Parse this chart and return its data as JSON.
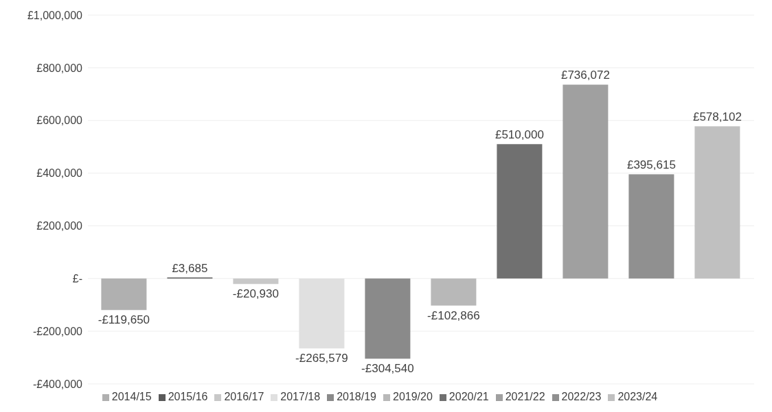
{
  "chart_data": {
    "type": "bar",
    "categories": [
      null
    ],
    "series": [
      {
        "name": "2014/15",
        "color": "#b0b0b0",
        "values": [
          -119650
        ],
        "value_labels": [
          "-£119,650"
        ]
      },
      {
        "name": "2015/16",
        "color": "#5a5a5a",
        "values": [
          3685
        ],
        "value_labels": [
          "£3,685"
        ]
      },
      {
        "name": "2016/17",
        "color": "#c8c8c8",
        "values": [
          -20930
        ],
        "value_labels": [
          "-£20,930"
        ]
      },
      {
        "name": "2017/18",
        "color": "#e0e0e0",
        "values": [
          -265579
        ],
        "value_labels": [
          "-£265,579"
        ]
      },
      {
        "name": "2018/19",
        "color": "#8a8a8a",
        "values": [
          -304540
        ],
        "value_labels": [
          "-£304,540"
        ]
      },
      {
        "name": "2019/20",
        "color": "#b8b8b8",
        "values": [
          -102866
        ],
        "value_labels": [
          "-£102,866"
        ]
      },
      {
        "name": "2020/21",
        "color": "#707070",
        "values": [
          510000
        ],
        "value_labels": [
          "£510,000"
        ]
      },
      {
        "name": "2021/22",
        "color": "#a0a0a0",
        "values": [
          736072
        ],
        "value_labels": [
          "£736,072"
        ]
      },
      {
        "name": "2022/23",
        "color": "#909090",
        "values": [
          395615
        ],
        "value_labels": [
          "£395,615"
        ]
      },
      {
        "name": "2023/24",
        "color": "#c0c0c0",
        "values": [
          578102
        ],
        "value_labels": [
          "£578,102"
        ]
      }
    ],
    "ylim": [
      -400000,
      1000000
    ],
    "yticks": [
      {
        "value": -400000,
        "label": "-£400,000"
      },
      {
        "value": -200000,
        "label": "-£200,000"
      },
      {
        "value": 0,
        "label": "£-"
      },
      {
        "value": 200000,
        "label": "£200,000"
      },
      {
        "value": 400000,
        "label": "£400,000"
      },
      {
        "value": 600000,
        "label": "£600,000"
      },
      {
        "value": 800000,
        "label": "£800,000"
      },
      {
        "value": 1000000,
        "label": "£1,000,000"
      }
    ],
    "grid": "y",
    "legend": "bottom"
  }
}
